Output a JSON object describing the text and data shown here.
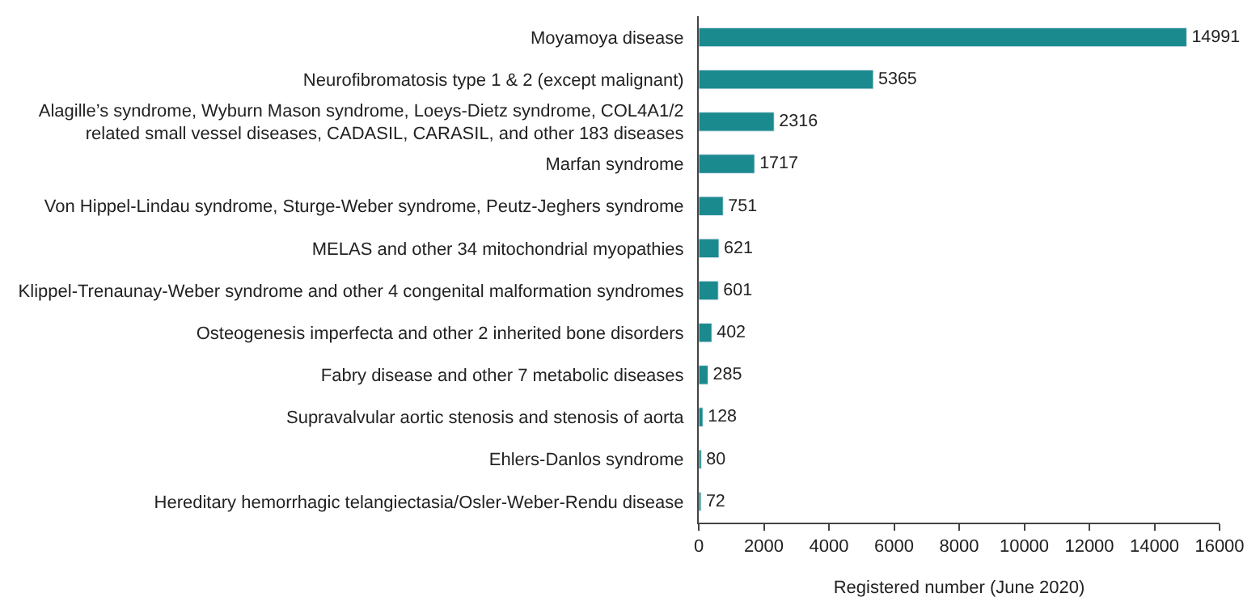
{
  "chart_data": {
    "type": "bar",
    "orientation": "horizontal",
    "xlabel": "Registered number (June 2020)",
    "categories": [
      "Moyamoya disease",
      "Neurofibromatosis type 1 & 2 (except malignant)",
      "Alagille’s syndrome, Wyburn Mason syndrome, Loeys-Dietz syndrome, COL4A1/2\nrelated small vessel diseases, CADASIL, CARASIL, and other 183 diseases",
      "Marfan syndrome",
      "Von Hippel-Lindau syndrome, Sturge-Weber syndrome, Peutz-Jeghers syndrome",
      "MELAS and other 34 mitochondrial myopathies",
      "Klippel-Trenaunay-Weber syndrome and other 4 congenital malformation syndromes",
      "Osteogenesis imperfecta and other 2 inherited bone disorders",
      "Fabry disease and other 7 metabolic diseases",
      "Supravalvular aortic stenosis and stenosis of aorta",
      "Ehlers-Danlos syndrome",
      "Hereditary hemorrhagic telangiectasia/Osler-Weber-Rendu disease"
    ],
    "series": [
      {
        "color": "#1b8a8e",
        "values": [
          14991,
          5365,
          2316,
          1717,
          751,
          621,
          601,
          402,
          285,
          128,
          80,
          72
        ]
      }
    ],
    "xlim": [
      0,
      16000
    ],
    "xticks": [
      0,
      2000,
      4000,
      6000,
      8000,
      10000,
      12000,
      14000,
      16000
    ],
    "data_labels": true
  }
}
